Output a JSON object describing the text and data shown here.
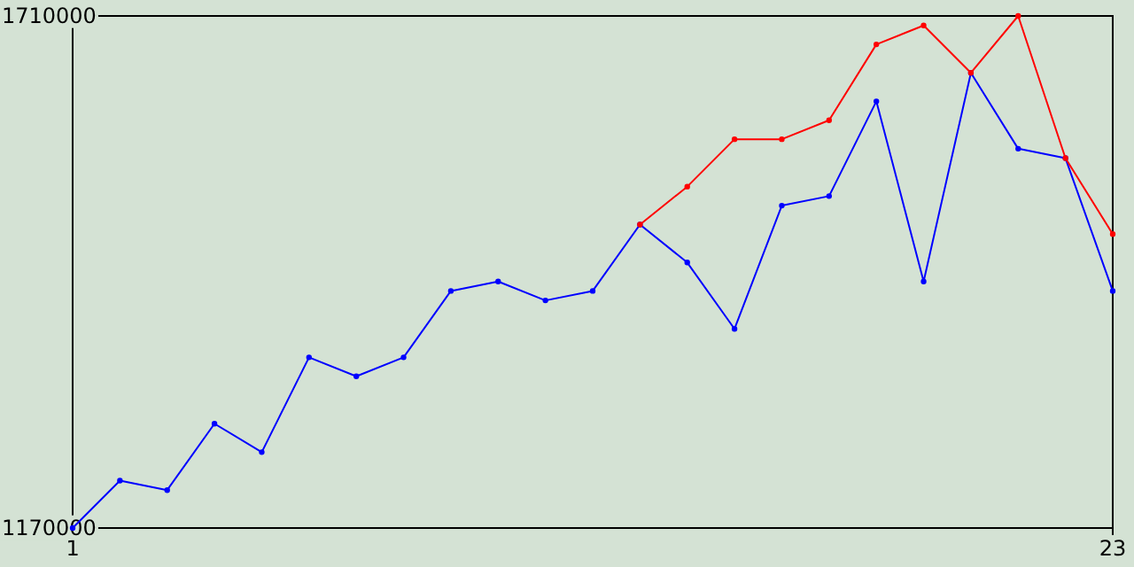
{
  "chart_data": {
    "type": "line",
    "x": [
      1,
      2,
      3,
      4,
      5,
      6,
      7,
      8,
      9,
      10,
      11,
      12,
      13,
      14,
      15,
      16,
      17,
      18,
      19,
      20,
      21,
      22,
      23
    ],
    "series": [
      {
        "color": "#0000ff",
        "values": [
          1170000,
          1220000,
          1210000,
          1280000,
          1250000,
          1350000,
          1330000,
          1350000,
          1420000,
          1430000,
          1410000,
          1420000,
          1490000,
          1450000,
          1380000,
          1510000,
          1520000,
          1620000,
          1430000,
          1650000,
          1570000,
          1560000,
          1420000
        ]
      },
      {
        "color": "#ff0000",
        "values": [
          null,
          null,
          null,
          null,
          null,
          null,
          null,
          null,
          null,
          null,
          null,
          null,
          1490000,
          1530000,
          1580000,
          1580000,
          1600000,
          1680000,
          1700000,
          1650000,
          1710000,
          1560000,
          1480000
        ]
      }
    ],
    "xlim": [
      1,
      23
    ],
    "xticks": [
      1,
      23
    ],
    "ylim": [
      1170000,
      1710000
    ],
    "yticks": [
      1170000,
      1710000
    ],
    "marker": "circle",
    "line_style": "solid"
  }
}
